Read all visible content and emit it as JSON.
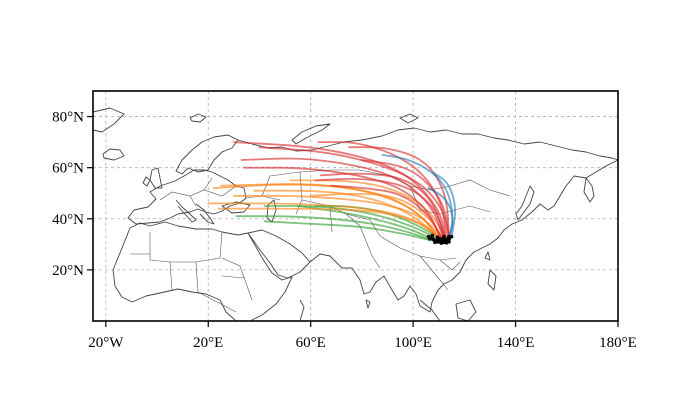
{
  "map": {
    "projection": "PlateCarree",
    "extent": {
      "lon": [
        -25,
        180
      ],
      "lat": [
        0,
        90
      ]
    },
    "grid": true,
    "x_ticks": [
      {
        "value": -20,
        "label": "20°W"
      },
      {
        "value": 20,
        "label": "20°E"
      },
      {
        "value": 60,
        "label": "60°E"
      },
      {
        "value": 100,
        "label": "100°E"
      },
      {
        "value": 140,
        "label": "140°E"
      },
      {
        "value": 180,
        "label": "180°E"
      }
    ],
    "y_ticks": [
      {
        "value": 20,
        "label": "20°N"
      },
      {
        "value": 40,
        "label": "40°N"
      },
      {
        "value": 60,
        "label": "60°N"
      },
      {
        "value": 80,
        "label": "80°N"
      }
    ],
    "trajectory_colors": {
      "red": "#d62728",
      "orange": "#ff7f0e",
      "green": "#2ca02c",
      "blue": "#1f77b4"
    },
    "coastline_color": "#444444"
  },
  "chart_data": {
    "type": "map-trajectories",
    "origin_region": {
      "lon": [
        106,
        115
      ],
      "lat": [
        30,
        34
      ]
    },
    "trajectories": [
      {
        "group": "red",
        "points": [
          [
            113,
            31
          ],
          [
            110,
            45
          ],
          [
            95,
            60
          ],
          [
            65,
            68
          ],
          [
            30,
            70
          ]
        ]
      },
      {
        "group": "red",
        "points": [
          [
            112,
            32
          ],
          [
            107,
            46
          ],
          [
            92,
            58
          ],
          [
            60,
            64
          ],
          [
            33,
            63
          ]
        ]
      },
      {
        "group": "red",
        "points": [
          [
            114,
            31
          ],
          [
            112,
            44
          ],
          [
            100,
            57
          ],
          [
            70,
            66
          ],
          [
            40,
            68
          ]
        ]
      },
      {
        "group": "red",
        "points": [
          [
            111,
            32
          ],
          [
            105,
            45
          ],
          [
            90,
            55
          ],
          [
            60,
            60
          ],
          [
            34,
            60
          ]
        ]
      },
      {
        "group": "red",
        "points": [
          [
            113,
            32
          ],
          [
            111,
            48
          ],
          [
            100,
            62
          ],
          [
            80,
            70
          ],
          [
            63,
            70
          ]
        ]
      },
      {
        "group": "red",
        "points": [
          [
            114,
            33
          ],
          [
            113,
            50
          ],
          [
            105,
            63
          ],
          [
            90,
            68
          ],
          [
            75,
            68
          ]
        ]
      },
      {
        "group": "red",
        "points": [
          [
            112,
            33
          ],
          [
            108,
            47
          ],
          [
            97,
            56
          ],
          [
            80,
            58
          ],
          [
            64,
            57
          ]
        ]
      },
      {
        "group": "red",
        "points": [
          [
            113,
            31
          ],
          [
            109,
            44
          ],
          [
            98,
            53
          ],
          [
            80,
            56
          ],
          [
            62,
            55
          ]
        ]
      },
      {
        "group": "red",
        "points": [
          [
            112,
            31
          ],
          [
            106,
            42
          ],
          [
            95,
            50
          ],
          [
            82,
            52
          ],
          [
            68,
            53
          ]
        ]
      },
      {
        "group": "red",
        "points": [
          [
            114,
            33
          ],
          [
            112,
            46
          ],
          [
            104,
            56
          ],
          [
            95,
            61
          ],
          [
            80,
            63
          ]
        ]
      },
      {
        "group": "orange",
        "points": [
          [
            111,
            31
          ],
          [
            104,
            41
          ],
          [
            90,
            49
          ],
          [
            65,
            54
          ],
          [
            25,
            53
          ]
        ]
      },
      {
        "group": "orange",
        "points": [
          [
            110,
            32
          ],
          [
            102,
            43
          ],
          [
            85,
            51
          ],
          [
            55,
            54
          ],
          [
            22,
            52
          ]
        ]
      },
      {
        "group": "orange",
        "points": [
          [
            112,
            31
          ],
          [
            105,
            40
          ],
          [
            90,
            46
          ],
          [
            60,
            49
          ],
          [
            30,
            49
          ]
        ]
      },
      {
        "group": "orange",
        "points": [
          [
            111,
            31
          ],
          [
            103,
            39
          ],
          [
            85,
            44
          ],
          [
            55,
            46
          ],
          [
            20,
            46
          ]
        ]
      },
      {
        "group": "orange",
        "points": [
          [
            112,
            31
          ],
          [
            104,
            38
          ],
          [
            88,
            43
          ],
          [
            60,
            44
          ],
          [
            24,
            44
          ]
        ]
      },
      {
        "group": "orange",
        "points": [
          [
            110,
            32
          ],
          [
            101,
            41
          ],
          [
            85,
            48
          ],
          [
            65,
            51
          ],
          [
            38,
            51
          ]
        ]
      },
      {
        "group": "orange",
        "points": [
          [
            113,
            32
          ],
          [
            106,
            44
          ],
          [
            92,
            52
          ],
          [
            75,
            55
          ],
          [
            52,
            55
          ]
        ]
      },
      {
        "group": "orange",
        "points": [
          [
            112,
            32
          ],
          [
            105,
            42
          ],
          [
            93,
            49
          ],
          [
            78,
            50
          ],
          [
            60,
            49
          ]
        ]
      },
      {
        "group": "green",
        "points": [
          [
            109,
            31
          ],
          [
            98,
            35
          ],
          [
            80,
            39
          ],
          [
            55,
            41
          ],
          [
            31,
            41
          ]
        ]
      },
      {
        "group": "green",
        "points": [
          [
            110,
            32
          ],
          [
            100,
            37
          ],
          [
            85,
            42
          ],
          [
            65,
            45
          ],
          [
            42,
            45
          ]
        ]
      },
      {
        "group": "green",
        "points": [
          [
            109,
            31
          ],
          [
            97,
            34
          ],
          [
            80,
            37
          ],
          [
            60,
            38
          ],
          [
            42,
            39
          ]
        ]
      },
      {
        "group": "green",
        "points": [
          [
            110,
            31
          ],
          [
            99,
            36
          ],
          [
            85,
            40
          ],
          [
            70,
            43
          ],
          [
            55,
            45
          ]
        ]
      },
      {
        "group": "green",
        "points": [
          [
            111,
            32
          ],
          [
            101,
            38
          ],
          [
            88,
            43
          ],
          [
            75,
            45
          ],
          [
            62,
            45
          ]
        ]
      },
      {
        "group": "blue",
        "points": [
          [
            114,
            32
          ],
          [
            116,
            42
          ],
          [
            112,
            55
          ],
          [
            100,
            63
          ],
          [
            88,
            65
          ]
        ]
      },
      {
        "group": "blue",
        "points": [
          [
            115,
            33
          ],
          [
            117,
            44
          ],
          [
            114,
            54
          ],
          [
            108,
            58
          ]
        ]
      },
      {
        "group": "blue",
        "points": [
          [
            114,
            32
          ],
          [
            116,
            40
          ],
          [
            113,
            48
          ],
          [
            106,
            52
          ]
        ]
      }
    ]
  }
}
